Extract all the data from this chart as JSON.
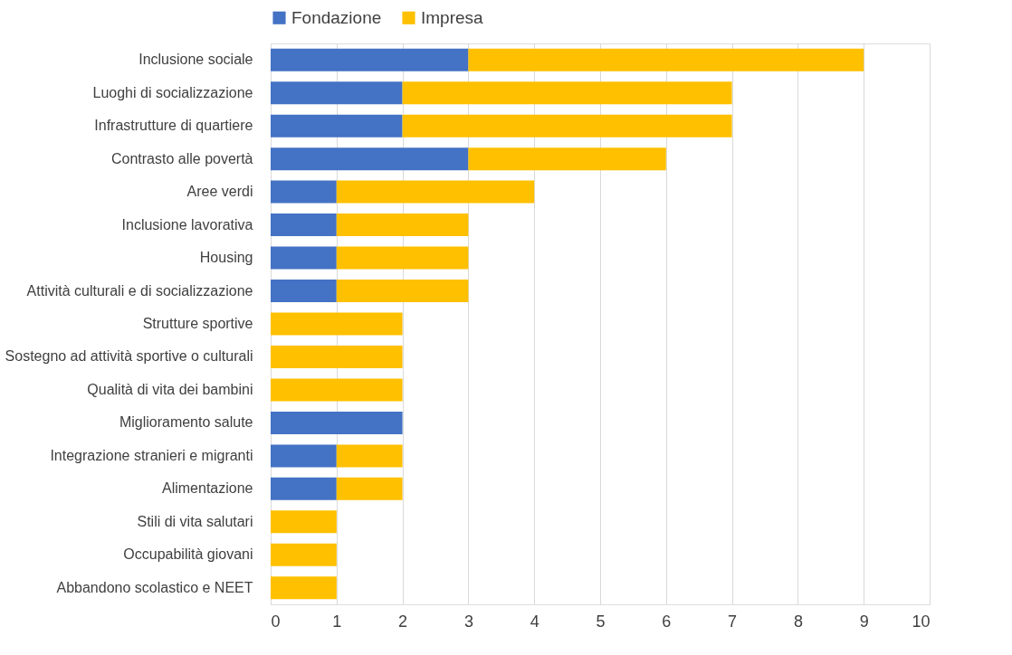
{
  "chart_data": {
    "type": "bar",
    "orientation": "horizontal",
    "stacked": true,
    "categories": [
      "Inclusione sociale",
      "Luoghi di socializzazione",
      "Infrastrutture di quartiere",
      "Contrasto alle povertà",
      "Aree verdi",
      "Inclusione lavorativa",
      "Housing",
      "Attività culturali e di socializzazione",
      "Strutture sportive",
      "Sostegno ad attività sportive o culturali",
      "Qualità di vita dei bambini",
      "Miglioramento salute",
      "Integrazione stranieri e migranti",
      "Alimentazione",
      "Stili di vita salutari",
      "Occupabilità giovani",
      "Abbandono scolastico e NEET"
    ],
    "series": [
      {
        "name": "Fondazione",
        "color": "#4472c4",
        "values": [
          3,
          2,
          2,
          3,
          1,
          1,
          1,
          1,
          null,
          null,
          null,
          2,
          1,
          1,
          null,
          null,
          null
        ]
      },
      {
        "name": "Impresa",
        "color": "#ffc000",
        "values": [
          6,
          5,
          5,
          3,
          3,
          2,
          2,
          2,
          2,
          2,
          2,
          null,
          1,
          1,
          1,
          1,
          1
        ]
      }
    ],
    "xlim": [
      0,
      10
    ],
    "xticks": [
      0,
      1,
      2,
      3,
      4,
      5,
      6,
      7,
      8,
      9,
      10
    ],
    "grid": "x",
    "legend": "top"
  }
}
